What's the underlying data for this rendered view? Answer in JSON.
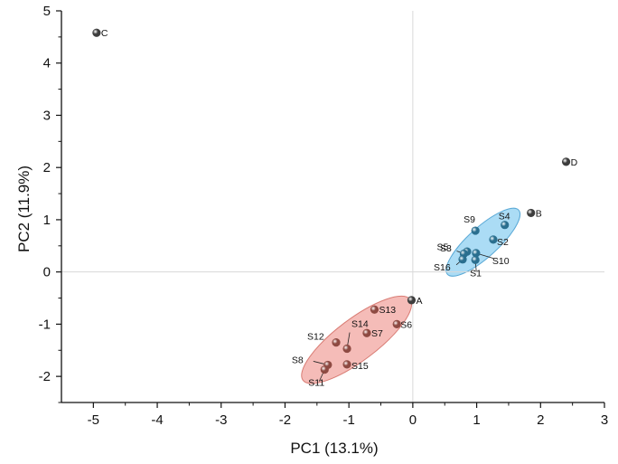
{
  "chart_data": {
    "type": "scatter",
    "title": "",
    "xlabel": "PC1 (13.1%)",
    "ylabel": "PC2 (11.9%)",
    "xlim": [
      -5.5,
      3
    ],
    "ylim": [
      -2.5,
      5
    ],
    "xticks": [
      -5,
      -4,
      -3,
      -2,
      -1,
      0,
      1,
      2,
      3
    ],
    "yticks": [
      -2,
      -1,
      0,
      1,
      2,
      3,
      4,
      5
    ],
    "grid": false,
    "zero_lines": true,
    "colors": {
      "reference": "#3d3d3d",
      "group_blue": "#2a6f8f",
      "group_red": "#8e4a42",
      "ellipse_blue": "#8fd0f2",
      "ellipse_red": "#f1a6a0"
    },
    "series": [
      {
        "group": "reference",
        "points": [
          {
            "label": "A",
            "x": -0.02,
            "y": -0.54
          },
          {
            "label": "B",
            "x": 1.85,
            "y": 1.13
          },
          {
            "label": "C",
            "x": -4.95,
            "y": 4.58
          },
          {
            "label": "D",
            "x": 2.4,
            "y": 2.11
          }
        ]
      },
      {
        "group": "blue",
        "points": [
          {
            "label": "S1",
            "x": 0.98,
            "y": 0.23
          },
          {
            "label": "S2",
            "x": 1.26,
            "y": 0.62
          },
          {
            "label": "S3",
            "x": 0.85,
            "y": 0.39
          },
          {
            "label": "S4",
            "x": 1.44,
            "y": 0.9
          },
          {
            "label": "S5",
            "x": 0.8,
            "y": 0.35
          },
          {
            "label": "S9",
            "x": 0.98,
            "y": 0.79
          },
          {
            "label": "S10",
            "x": 0.99,
            "y": 0.36
          },
          {
            "label": "S16",
            "x": 0.78,
            "y": 0.24
          }
        ]
      },
      {
        "group": "red",
        "points": [
          {
            "label": "S6",
            "x": -0.25,
            "y": -1.0
          },
          {
            "label": "S7",
            "x": -0.72,
            "y": -1.17
          },
          {
            "label": "S8",
            "x": -1.33,
            "y": -1.78
          },
          {
            "label": "S11",
            "x": -1.38,
            "y": -1.87
          },
          {
            "label": "S12",
            "x": -1.2,
            "y": -1.35
          },
          {
            "label": "S13",
            "x": -0.6,
            "y": -0.72
          },
          {
            "label": "S14",
            "x": -1.03,
            "y": -1.47
          },
          {
            "label": "S15",
            "x": -1.03,
            "y": -1.77
          }
        ]
      }
    ],
    "ellipses": [
      {
        "group": "blue",
        "cx": 1.1,
        "cy": 0.57,
        "rx": 0.75,
        "ry": 0.3,
        "angle_deg": 42
      },
      {
        "group": "red",
        "cx": -0.88,
        "cy": -1.3,
        "rx": 1.05,
        "ry": 0.42,
        "angle_deg": 37
      }
    ]
  }
}
